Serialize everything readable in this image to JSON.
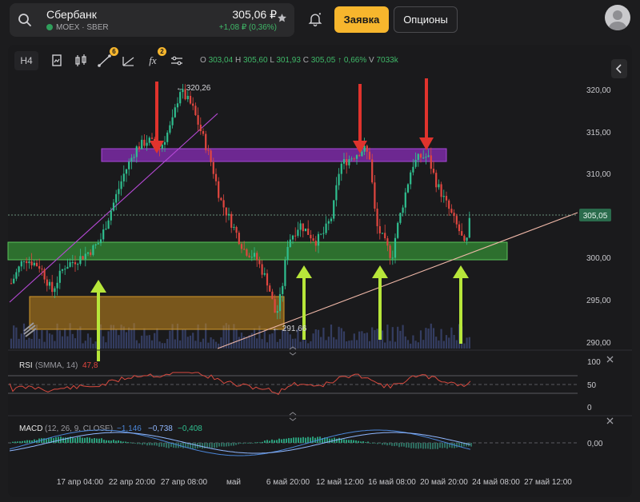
{
  "ticker": {
    "name": "Сбербанк",
    "exchange": "MOEX",
    "separator": "·",
    "code": "SBER",
    "price": "305,06 ₽",
    "change": "+1,08 ₽ (0,36%)"
  },
  "actions": {
    "order_label": "Заявка",
    "options_label": "Опционы"
  },
  "toolbar": {
    "timeframe": "H4",
    "drawings_badge": "6",
    "indicators_badge": "2",
    "indicator_icon": "fx"
  },
  "ohlc": {
    "o_label": "O",
    "o": "303,04",
    "h_label": "H",
    "h": "305,60",
    "l_label": "L",
    "l": "301,93",
    "c_label": "C",
    "c": "305,05",
    "change": "↑ 0,66%",
    "v_label": "V",
    "volume": "7033k"
  },
  "chart": {
    "price_ticks": [
      "320,00",
      "315,00",
      "310,00",
      "305,00",
      "300,00",
      "295,00",
      "290,00"
    ],
    "last_price": "305,05",
    "high_label": "← 320,26",
    "low_label": "← 291,66",
    "time_ticks": [
      "17 апр 04:00",
      "22 апр 20:00",
      "27 апр 08:00",
      "май",
      "6 май 20:00",
      "12 май 12:00",
      "16 май 08:00",
      "20 май 20:00",
      "24 май 08:00",
      "27 май 12:00"
    ],
    "colors": {
      "up": "#2fbf8f",
      "down": "#e0463f",
      "zone_green": "#3aa83a",
      "zone_purple": "#8a2db8",
      "zone_orange": "#c98a1e",
      "arrow_red": "#e0332d",
      "arrow_green": "#b7e63a"
    }
  },
  "rsi": {
    "label": "RSI",
    "params": "(SMMA, 14)",
    "value": "47,8",
    "ticks": [
      "100",
      "50",
      "0"
    ]
  },
  "macd": {
    "label": "MACD",
    "params": "(12, 26, 9, CLOSE)",
    "v1": "−1,146",
    "v2": "−0,738",
    "v3": "−0,408",
    "ticks": [
      "0,00"
    ]
  }
}
